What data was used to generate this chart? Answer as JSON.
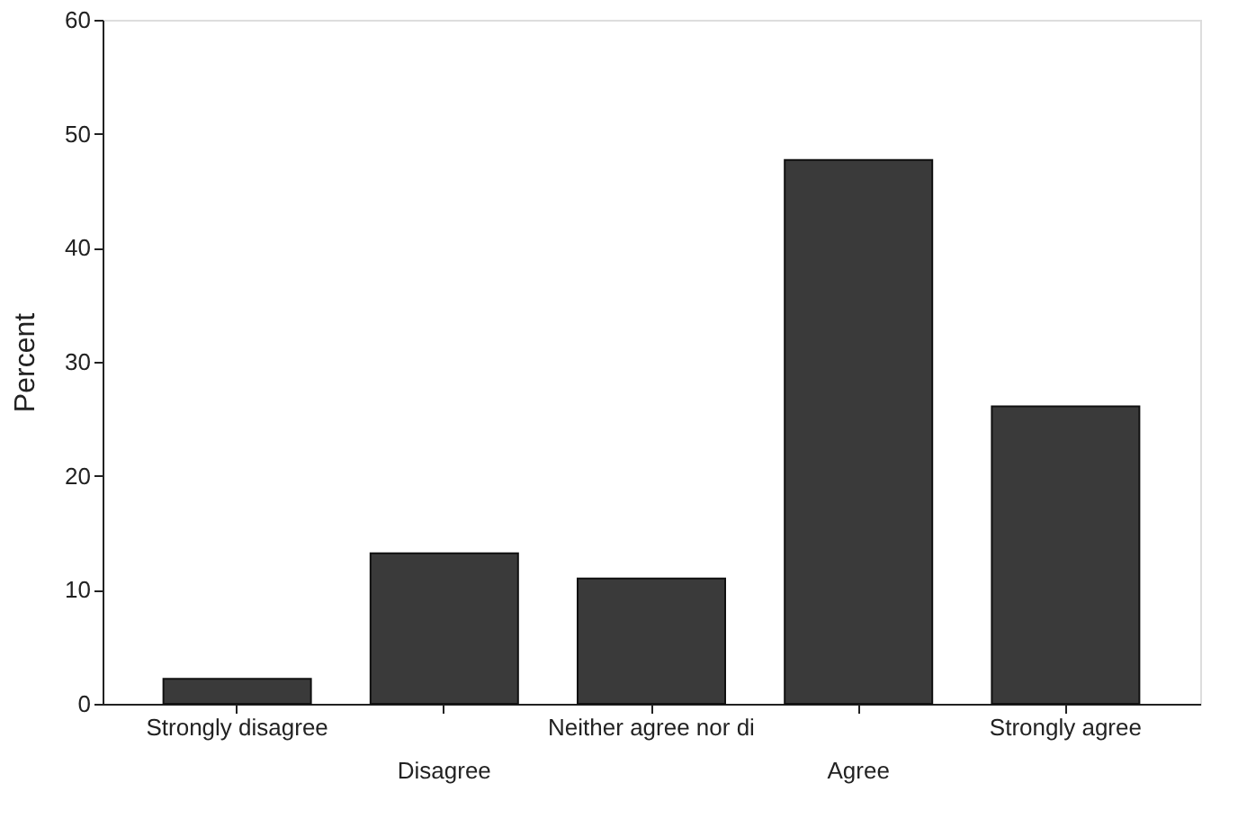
{
  "chart_data": {
    "type": "bar",
    "ylabel": "Percent",
    "categories": [
      "Strongly disagree",
      "Disagree",
      "Neither agree nor di",
      "Agree",
      "Strongly agree"
    ],
    "values": [
      2.2,
      13.2,
      11.0,
      47.7,
      26.1
    ],
    "color": "#3a3a3a",
    "ylim": [
      0,
      60
    ],
    "yticks": [
      0,
      10,
      20,
      30,
      40,
      50,
      60
    ],
    "grid": false
  }
}
